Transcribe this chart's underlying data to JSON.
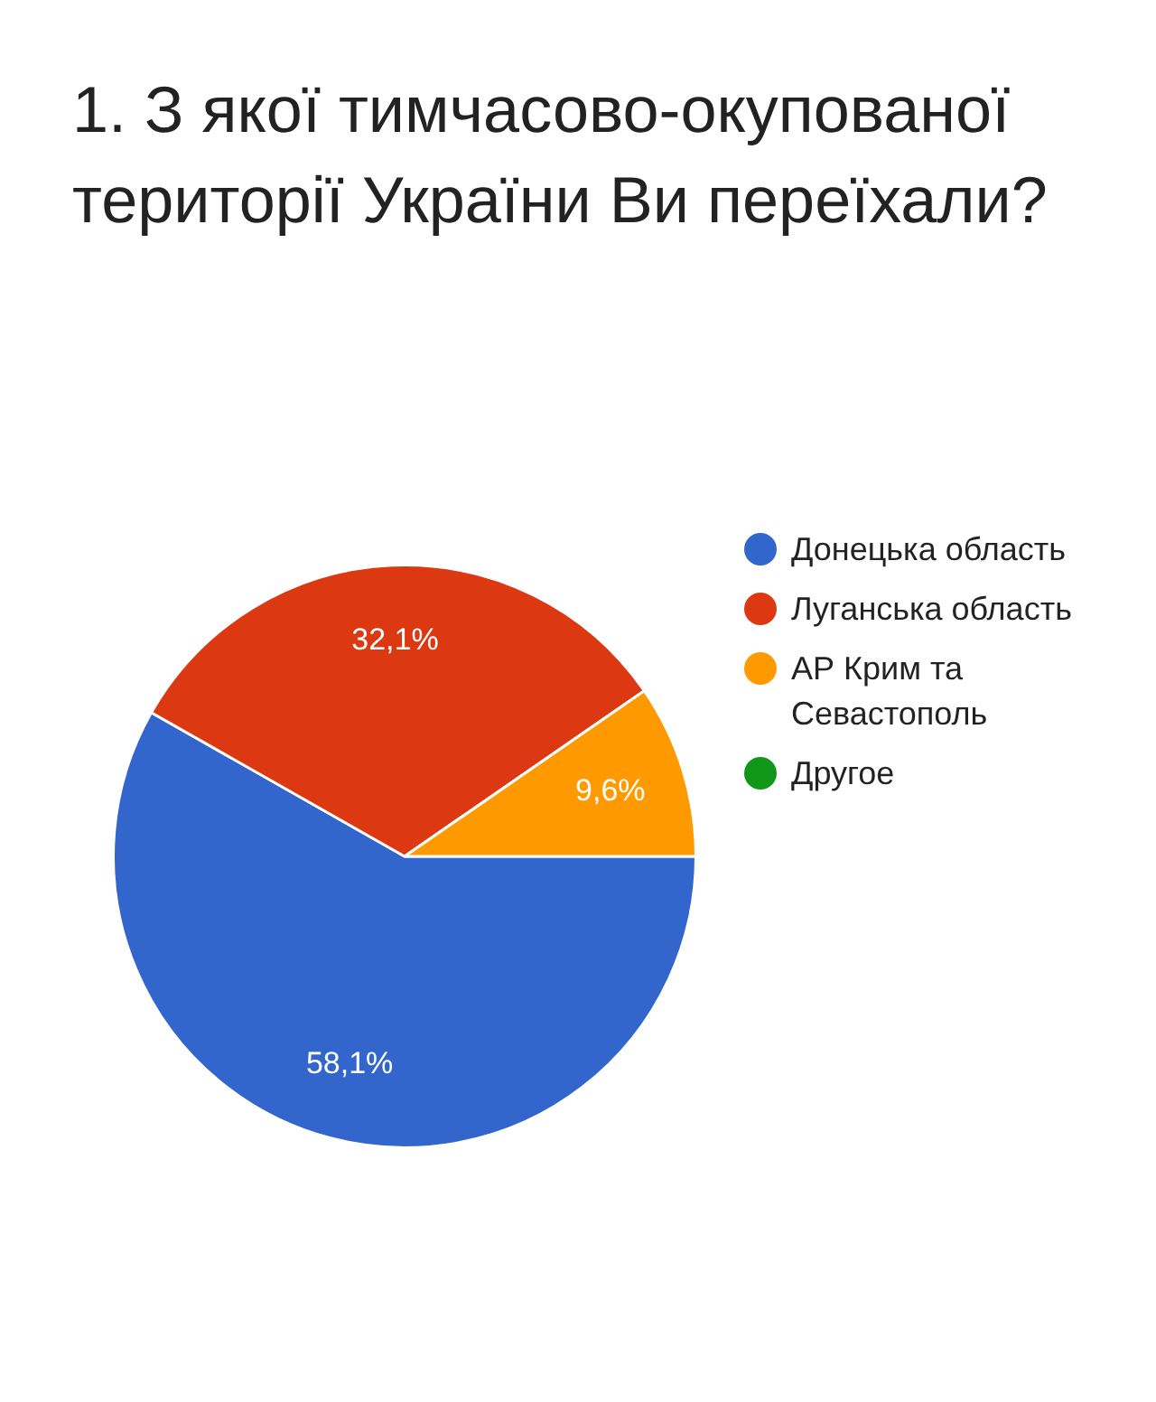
{
  "chart_data": {
    "type": "pie",
    "title": "1. З якої тимчасово-окупованої території України Ви переїхали?",
    "categories": [
      "Донецька область",
      "Луганська область",
      "АР Крим та Севастополь",
      "Другое"
    ],
    "values": [
      58.1,
      32.1,
      9.6,
      0
    ],
    "value_labels": [
      "58,1%",
      "32,1%",
      "9,6%",
      null
    ],
    "colors": [
      "#3366cc",
      "#dc3912",
      "#ff9900",
      "#109618"
    ],
    "legend": "right"
  }
}
